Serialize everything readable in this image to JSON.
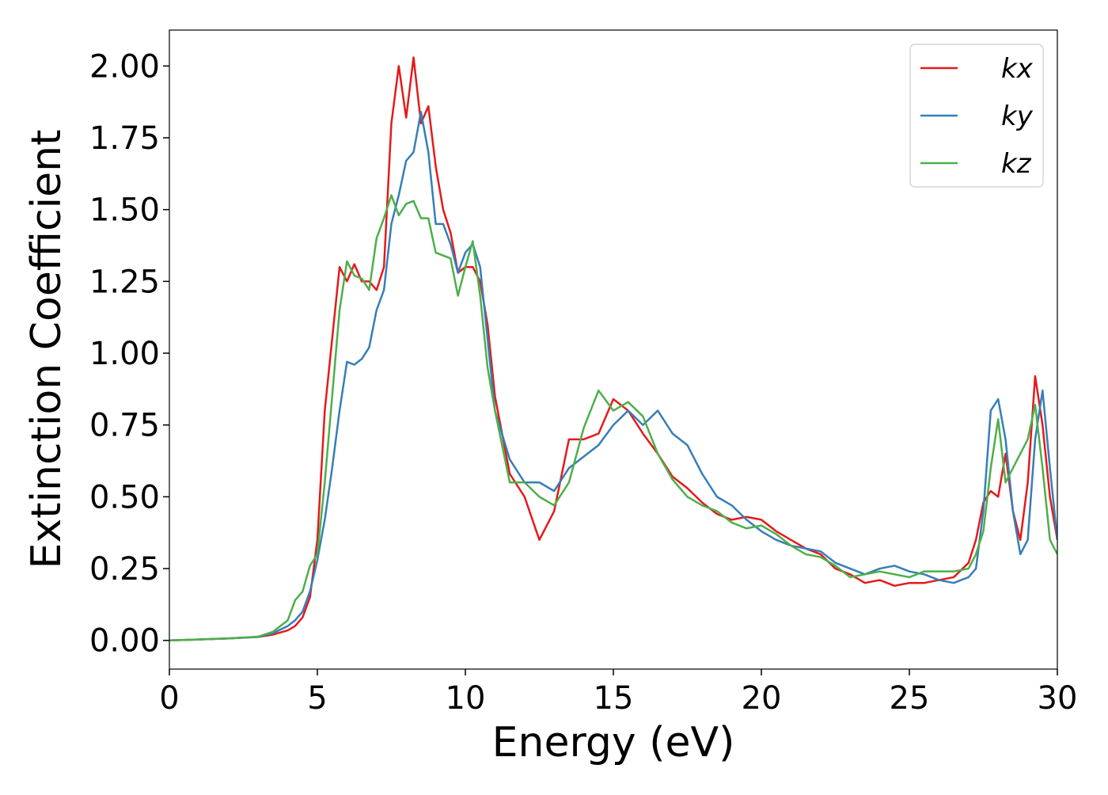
{
  "chart_data": {
    "type": "line",
    "xlabel": "Energy (eV)",
    "ylabel": "Extinction Coefficient",
    "x": [
      0,
      1,
      2,
      3,
      3.5,
      4,
      4.25,
      4.5,
      4.75,
      5,
      5.25,
      5.5,
      5.75,
      6,
      6.25,
      6.5,
      6.75,
      7,
      7.25,
      7.5,
      7.75,
      8,
      8.25,
      8.5,
      8.75,
      9,
      9.25,
      9.5,
      9.75,
      10,
      10.25,
      10.5,
      10.75,
      11,
      11.5,
      12,
      12.5,
      13,
      13.5,
      14,
      14.5,
      15,
      15.5,
      16,
      16.5,
      17,
      17.5,
      18,
      18.5,
      19,
      19.5,
      20,
      20.5,
      21,
      21.5,
      22,
      22.5,
      23,
      23.5,
      24,
      24.5,
      25,
      25.5,
      26,
      26.5,
      27,
      27.25,
      27.5,
      27.75,
      28,
      28.25,
      28.5,
      28.75,
      29,
      29.25,
      29.5,
      29.75,
      30
    ],
    "series": [
      {
        "name": "kx",
        "color": "#e41a1c",
        "values": [
          0,
          0.003,
          0.007,
          0.012,
          0.02,
          0.035,
          0.05,
          0.08,
          0.15,
          0.35,
          0.8,
          1.05,
          1.3,
          1.25,
          1.31,
          1.25,
          1.25,
          1.22,
          1.3,
          1.8,
          2.0,
          1.82,
          2.03,
          1.8,
          1.86,
          1.65,
          1.5,
          1.42,
          1.28,
          1.3,
          1.3,
          1.25,
          1.1,
          0.85,
          0.58,
          0.5,
          0.35,
          0.45,
          0.7,
          0.7,
          0.72,
          0.84,
          0.8,
          0.72,
          0.65,
          0.57,
          0.53,
          0.48,
          0.44,
          0.42,
          0.43,
          0.42,
          0.38,
          0.35,
          0.32,
          0.3,
          0.25,
          0.23,
          0.2,
          0.21,
          0.19,
          0.2,
          0.2,
          0.21,
          0.22,
          0.27,
          0.35,
          0.48,
          0.52,
          0.5,
          0.65,
          0.45,
          0.35,
          0.55,
          0.92,
          0.75,
          0.5,
          0.35
        ]
      },
      {
        "name": "ky",
        "color": "#377eb8",
        "values": [
          0,
          0.003,
          0.007,
          0.012,
          0.025,
          0.05,
          0.07,
          0.1,
          0.17,
          0.28,
          0.42,
          0.6,
          0.8,
          0.97,
          0.96,
          0.98,
          1.02,
          1.15,
          1.22,
          1.45,
          1.55,
          1.67,
          1.7,
          1.84,
          1.7,
          1.45,
          1.45,
          1.38,
          1.28,
          1.35,
          1.38,
          1.3,
          1.05,
          0.8,
          0.63,
          0.55,
          0.55,
          0.52,
          0.6,
          0.64,
          0.68,
          0.75,
          0.8,
          0.75,
          0.8,
          0.72,
          0.68,
          0.58,
          0.5,
          0.47,
          0.42,
          0.38,
          0.35,
          0.33,
          0.32,
          0.31,
          0.27,
          0.25,
          0.23,
          0.25,
          0.26,
          0.24,
          0.23,
          0.21,
          0.2,
          0.22,
          0.25,
          0.45,
          0.8,
          0.84,
          0.7,
          0.45,
          0.3,
          0.35,
          0.7,
          0.87,
          0.6,
          0.35
        ]
      },
      {
        "name": "kz",
        "color": "#4daf4a",
        "values": [
          0,
          0.003,
          0.007,
          0.013,
          0.03,
          0.07,
          0.14,
          0.17,
          0.26,
          0.3,
          0.55,
          0.85,
          1.15,
          1.32,
          1.27,
          1.26,
          1.22,
          1.4,
          1.47,
          1.55,
          1.48,
          1.52,
          1.53,
          1.47,
          1.47,
          1.35,
          1.34,
          1.33,
          1.2,
          1.3,
          1.39,
          1.2,
          0.95,
          0.8,
          0.55,
          0.55,
          0.5,
          0.47,
          0.55,
          0.74,
          0.87,
          0.8,
          0.83,
          0.78,
          0.65,
          0.56,
          0.5,
          0.47,
          0.45,
          0.41,
          0.39,
          0.4,
          0.37,
          0.33,
          0.3,
          0.29,
          0.26,
          0.22,
          0.23,
          0.24,
          0.23,
          0.22,
          0.24,
          0.24,
          0.24,
          0.25,
          0.3,
          0.38,
          0.6,
          0.77,
          0.55,
          0.6,
          0.65,
          0.7,
          0.82,
          0.6,
          0.35,
          0.3
        ]
      }
    ],
    "xlim": [
      0,
      30
    ],
    "xticks": [
      0,
      5,
      10,
      15,
      20,
      25,
      30
    ],
    "ylim": [
      -0.1,
      2.125
    ],
    "yticks": [
      {
        "value": 0,
        "label": "0.00"
      },
      {
        "value": 0.25,
        "label": "0.25"
      },
      {
        "value": 0.5,
        "label": "0.50"
      },
      {
        "value": 0.75,
        "label": "0.75"
      },
      {
        "value": 1,
        "label": "1.00"
      },
      {
        "value": 1.25,
        "label": "1.25"
      },
      {
        "value": 1.5,
        "label": "1.50"
      },
      {
        "value": 1.75,
        "label": "1.75"
      },
      {
        "value": 2,
        "label": "2.00"
      }
    ],
    "legend": "upper right"
  }
}
